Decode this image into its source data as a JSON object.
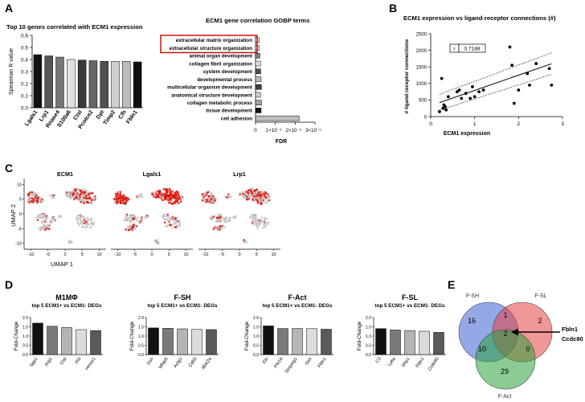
{
  "panels": {
    "A": "A",
    "B": "B",
    "C": "C",
    "D": "D",
    "E": "E"
  },
  "chart_data": [
    {
      "id": "A1",
      "type": "bar",
      "title": "Top 10 genes correlated with ECM1 expression",
      "ylabel": "Spearman R value",
      "categories": [
        "Lgals1",
        "Lrp1",
        "Rnase4",
        "S100a6",
        "Ctsl",
        "Pcolce2",
        "Dpt",
        "Timp2",
        "Cfh",
        "Fbln1"
      ],
      "values": [
        0.44,
        0.43,
        0.42,
        0.4,
        0.395,
        0.39,
        0.385,
        0.385,
        0.385,
        0.38
      ],
      "colors": [
        "#111111",
        "#555555",
        "#777777",
        "#e0e0e0",
        "#3a3a3a",
        "#666666",
        "#505050",
        "#cfcfcf",
        "#bdbdbd",
        "#111111"
      ],
      "ylim": [
        0,
        0.6
      ],
      "yticks": [
        "0.0",
        "0.1",
        "0.2",
        "0.3",
        "0.4",
        "0.5",
        "0.6"
      ],
      "ytick_values": [
        0,
        0.1,
        0.2,
        0.3,
        0.4,
        0.5,
        0.6
      ]
    },
    {
      "id": "A2",
      "type": "bar",
      "orientation": "horizontal",
      "title": "ECM1 gene correlation GOBP terms",
      "xlabel": "FDR",
      "categories": [
        "extracellular matrix organization",
        "extracellular structure organization",
        "animal organ development",
        "collagen fibril organization",
        "system development",
        "developmental process",
        "multicellular organism development",
        "anatomical structure development",
        "collagen metabolic process",
        "tissue development",
        "cell adhesion"
      ],
      "values": [
        1.8e-06,
        1.8e-06,
        2.2e-06,
        2.5e-06,
        2.6e-06,
        2.8e-06,
        3e-06,
        2.5e-06,
        3e-06,
        2.8e-06,
        2.2e-05
      ],
      "colors": [
        "#e6e6e6",
        "#e6e6e6",
        "#808080",
        "#e0e0e0",
        "#505050",
        "#bdbdbd",
        "#404040",
        "#d0d0d0",
        "#a0a0a0",
        "#111111",
        "#bdbdbd"
      ],
      "highlighted": [
        0,
        1
      ],
      "highlight_color": "#cc0000",
      "xlim": [
        0,
        3e-05
      ],
      "xticks": [
        "0",
        "1×10⁻⁵",
        "2×10⁻⁵",
        "3×10⁻⁵"
      ],
      "xtick_values": [
        0,
        1e-05,
        2e-05,
        3e-05
      ]
    },
    {
      "id": "B",
      "type": "scatter",
      "title": "ECM1 expression vs ligand-receptor connections (#)",
      "xlabel": "ECM1 expression",
      "ylabel": "# ligand:receptor connections",
      "xlim": [
        0,
        3
      ],
      "ylim": [
        0,
        2500
      ],
      "xticks": [
        "0",
        "1",
        "2",
        "3"
      ],
      "xtick_values": [
        0,
        1,
        2,
        3
      ],
      "yticks": [
        "0",
        "500",
        "1000",
        "1500",
        "2000",
        "2500"
      ],
      "ytick_values": [
        0,
        500,
        1000,
        1500,
        2000,
        2500
      ],
      "r_label": "r",
      "r_value": "0.7188",
      "x": [
        0.2,
        0.25,
        0.28,
        0.3,
        0.33,
        0.35,
        0.4,
        0.6,
        0.65,
        0.7,
        0.8,
        0.9,
        0.95,
        1.0,
        1.1,
        1.2,
        1.8,
        1.85,
        1.9,
        2.0,
        2.2,
        2.25,
        2.4,
        2.7,
        2.75
      ],
      "y": [
        150,
        1150,
        250,
        350,
        300,
        200,
        600,
        750,
        800,
        550,
        700,
        550,
        900,
        600,
        750,
        800,
        2100,
        1550,
        400,
        800,
        1300,
        950,
        1600,
        1450,
        950
      ],
      "fit": {
        "slope": 460,
        "intercept": 330
      }
    },
    {
      "id": "C",
      "type": "scatter",
      "umap_titles": [
        "ECM1",
        "Lgals1",
        "Lrp1"
      ],
      "xlabel": "UMAP 1",
      "ylabel": "UMAP 2",
      "xticks": [
        "-10",
        "-5",
        "0",
        "5",
        "10"
      ],
      "xtick_values": [
        -10,
        -5,
        0,
        5,
        10
      ],
      "yticks": [
        "10",
        "5",
        "0",
        "-5",
        "-10"
      ],
      "ytick_values": [
        10,
        5,
        0,
        -5,
        -10
      ],
      "expression_color": "#dd1a10",
      "background_color": "#c8c8c8",
      "intensity": [
        0.55,
        1.0,
        0.6
      ]
    },
    {
      "id": "D",
      "type": "bar",
      "ylabel": "Fold-Change",
      "ylim": [
        0,
        2.0
      ],
      "yticks": [
        "0.0",
        "0.5",
        "1.0",
        "1.5",
        "2.0"
      ],
      "ytick_values": [
        0,
        0.5,
        1.0,
        1.5,
        2.0
      ],
      "subplots": [
        {
          "title": "M1MΦ",
          "subtitle": "top 5 ECM1+ vs ECM1- DEGs",
          "categories": [
            "Spp1",
            "Arg1",
            "Ctsl",
            "Pf4",
            "Hmox1"
          ],
          "values": [
            1.7,
            1.53,
            1.46,
            1.35,
            1.3
          ]
        },
        {
          "title": "F-SH",
          "subtitle": "top 5 ECM1+ vs ECM1- DEGs",
          "categories": [
            "Gsn",
            "Mfap5",
            "Actg1",
            "Cd55",
            "Il6st2a"
          ],
          "values": [
            1.44,
            1.42,
            1.39,
            1.36,
            1.35
          ]
        },
        {
          "title": "F-Act",
          "subtitle": "top 5 ECM1+ vs ECM1- DEGs",
          "categories": [
            "Eln",
            "Ptn16",
            "Serping1",
            "Gsn",
            "Fbln1"
          ],
          "values": [
            1.55,
            1.41,
            1.41,
            1.4,
            1.37
          ]
        },
        {
          "title": "F-SL",
          "subtitle": "top 5 ECM1+ vs ECM1- DEGs",
          "categories": [
            "C3",
            "Ly6a",
            "Sfrp1",
            "Fbln1",
            "Ccdc80"
          ],
          "values": [
            1.4,
            1.33,
            1.3,
            1.26,
            1.2
          ]
        }
      ],
      "bar_colors": [
        "#111111",
        "#7a7a7a",
        "#b5b5b5",
        "#dcdcdc",
        "#5a5a5a"
      ]
    },
    {
      "id": "E",
      "type": "venn",
      "sets": [
        "F-SH",
        "F-SL",
        "F-Act"
      ],
      "set_colors": [
        "#3c5fd1",
        "#e34444",
        "#2aa33c"
      ],
      "regions": {
        "sh_only": "16",
        "sl_only": "2",
        "act_only": "29",
        "sh_sl": "1",
        "sh_act": "10",
        "sl_act": "0",
        "all": "2"
      },
      "annotation_genes": [
        "Fbln1",
        "Ccdc80"
      ]
    }
  ]
}
